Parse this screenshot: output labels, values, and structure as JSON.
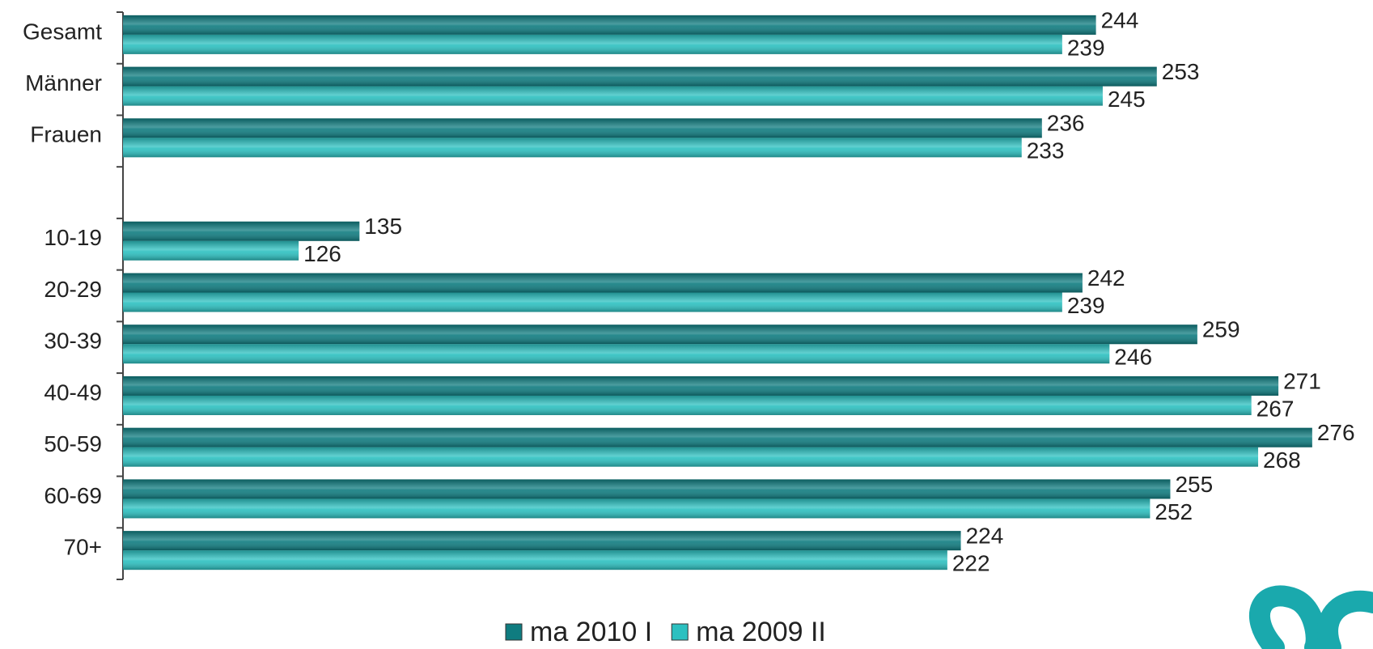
{
  "chart_data": {
    "type": "hbar",
    "categories": [
      "Gesamt",
      "Männer",
      "Frauen",
      null,
      "10-19",
      "20-29",
      "30-39",
      "40-49",
      "50-59",
      "60-69",
      "70+"
    ],
    "series": [
      {
        "name": "ma 2010 I",
        "color": "#0f7c80",
        "values": [
          244,
          253,
          236,
          null,
          135,
          242,
          259,
          271,
          276,
          255,
          224
        ]
      },
      {
        "name": "ma 2009 II",
        "color": "#2cc0c0",
        "values": [
          239,
          245,
          233,
          null,
          126,
          239,
          246,
          267,
          268,
          252,
          222
        ]
      }
    ],
    "xlim": [
      100,
      285
    ]
  }
}
